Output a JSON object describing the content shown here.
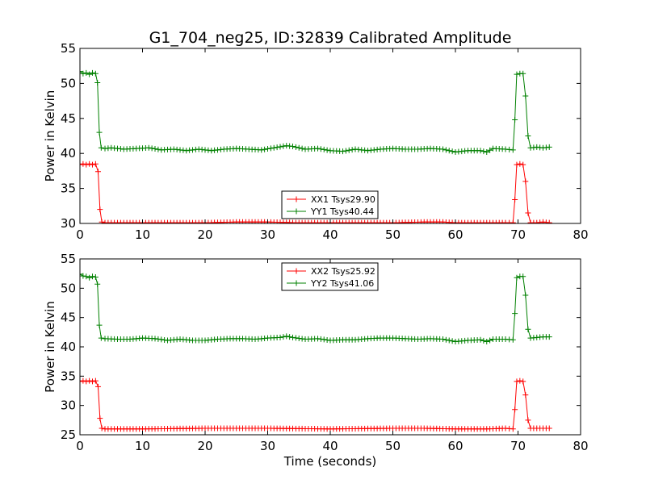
{
  "chart_data": [
    {
      "type": "line",
      "title": "G1_704_neg25, ID:32839 Calibrated Amplitude",
      "xlabel": "",
      "ylabel": "Power in Kelvin",
      "xlim": [
        0,
        80
      ],
      "ylim": [
        30,
        55
      ],
      "xticks": [
        0,
        10,
        20,
        30,
        40,
        50,
        60,
        70,
        80
      ],
      "yticks": [
        30,
        35,
        40,
        45,
        50,
        55
      ],
      "legend_position": "lower-center",
      "series": [
        {
          "name": "XX1 Tsys29.90",
          "color": "#ff0000",
          "points": [
            [
              0,
              38.4
            ],
            [
              0.5,
              38.5
            ],
            [
              1,
              38.4
            ],
            [
              1.5,
              38.5
            ],
            [
              2,
              38.4
            ],
            [
              2.5,
              38.5
            ],
            [
              2.9,
              37.4
            ],
            [
              3.2,
              32.0
            ],
            [
              3.5,
              30.2
            ],
            [
              4,
              30.1
            ],
            [
              10,
              30.1
            ],
            [
              20,
              30.1
            ],
            [
              25,
              30.2
            ],
            [
              30,
              30.2
            ],
            [
              35,
              30.1
            ],
            [
              40,
              30.1
            ],
            [
              45,
              30.1
            ],
            [
              50,
              30.1
            ],
            [
              55,
              30.2
            ],
            [
              58,
              30.2
            ],
            [
              60,
              30.1
            ],
            [
              65,
              30.1
            ],
            [
              68,
              30.1
            ],
            [
              69.2,
              30.1
            ],
            [
              69.5,
              33.4
            ],
            [
              69.8,
              38.4
            ],
            [
              70.3,
              38.5
            ],
            [
              70.8,
              38.4
            ],
            [
              71.2,
              36.0
            ],
            [
              71.6,
              31.5
            ],
            [
              72,
              30.1
            ],
            [
              73,
              30.1
            ],
            [
              74,
              30.2
            ],
            [
              75,
              30.1
            ]
          ]
        },
        {
          "name": "YY1 Tsys40.44",
          "color": "#008000",
          "points": [
            [
              0,
              51.7
            ],
            [
              0.5,
              51.4
            ],
            [
              1,
              51.5
            ],
            [
              1.5,
              51.3
            ],
            [
              2,
              51.5
            ],
            [
              2.5,
              51.4
            ],
            [
              2.8,
              50.1
            ],
            [
              3.1,
              43.0
            ],
            [
              3.4,
              40.8
            ],
            [
              4,
              40.7
            ],
            [
              5,
              40.8
            ],
            [
              7,
              40.6
            ],
            [
              9,
              40.7
            ],
            [
              11,
              40.8
            ],
            [
              13,
              40.5
            ],
            [
              15,
              40.6
            ],
            [
              17,
              40.4
            ],
            [
              19,
              40.6
            ],
            [
              21,
              40.4
            ],
            [
              23,
              40.6
            ],
            [
              25,
              40.7
            ],
            [
              27,
              40.6
            ],
            [
              29,
              40.5
            ],
            [
              31,
              40.8
            ],
            [
              33,
              41.1
            ],
            [
              34,
              41.0
            ],
            [
              36,
              40.6
            ],
            [
              38,
              40.7
            ],
            [
              40,
              40.4
            ],
            [
              42,
              40.3
            ],
            [
              44,
              40.6
            ],
            [
              46,
              40.4
            ],
            [
              48,
              40.6
            ],
            [
              50,
              40.7
            ],
            [
              52,
              40.6
            ],
            [
              54,
              40.6
            ],
            [
              56,
              40.7
            ],
            [
              58,
              40.6
            ],
            [
              60,
              40.2
            ],
            [
              62,
              40.4
            ],
            [
              64,
              40.4
            ],
            [
              65,
              40.2
            ],
            [
              66,
              40.7
            ],
            [
              68,
              40.6
            ],
            [
              69.2,
              40.5
            ],
            [
              69.5,
              44.8
            ],
            [
              69.8,
              51.3
            ],
            [
              70.3,
              51.4
            ],
            [
              70.8,
              51.4
            ],
            [
              71.2,
              48.2
            ],
            [
              71.6,
              42.5
            ],
            [
              72,
              40.8
            ],
            [
              73,
              40.9
            ],
            [
              74,
              40.8
            ],
            [
              75,
              40.9
            ]
          ]
        }
      ]
    },
    {
      "type": "line",
      "title": "",
      "xlabel": "Time (seconds)",
      "ylabel": "Power in Kelvin",
      "xlim": [
        0,
        80
      ],
      "ylim": [
        25,
        55
      ],
      "xticks": [
        0,
        10,
        20,
        30,
        40,
        50,
        60,
        70,
        80
      ],
      "yticks": [
        25,
        30,
        35,
        40,
        45,
        50,
        55
      ],
      "legend_position": "upper-center",
      "series": [
        {
          "name": "XX2 Tsys25.92",
          "color": "#ff0000",
          "points": [
            [
              0,
              34.1
            ],
            [
              0.5,
              34.2
            ],
            [
              1,
              34.1
            ],
            [
              1.5,
              34.2
            ],
            [
              2,
              34.1
            ],
            [
              2.5,
              34.2
            ],
            [
              2.9,
              33.2
            ],
            [
              3.2,
              27.8
            ],
            [
              3.5,
              26.1
            ],
            [
              4,
              26.0
            ],
            [
              10,
              26.0
            ],
            [
              20,
              26.1
            ],
            [
              30,
              26.1
            ],
            [
              40,
              26.0
            ],
            [
              50,
              26.1
            ],
            [
              55,
              26.1
            ],
            [
              60,
              26.0
            ],
            [
              65,
              26.0
            ],
            [
              68,
              26.1
            ],
            [
              69.2,
              26.0
            ],
            [
              69.5,
              29.3
            ],
            [
              69.8,
              34.1
            ],
            [
              70.3,
              34.2
            ],
            [
              70.8,
              34.1
            ],
            [
              71.2,
              31.8
            ],
            [
              71.6,
              27.5
            ],
            [
              72,
              26.1
            ],
            [
              73,
              26.1
            ],
            [
              74,
              26.1
            ],
            [
              75,
              26.1
            ]
          ]
        },
        {
          "name": "YY2 Tsys41.06",
          "color": "#008000",
          "points": [
            [
              0,
              52.4
            ],
            [
              0.5,
              52.1
            ],
            [
              1,
              52.0
            ],
            [
              1.5,
              51.8
            ],
            [
              2,
              52.0
            ],
            [
              2.5,
              51.9
            ],
            [
              2.8,
              50.7
            ],
            [
              3.1,
              43.7
            ],
            [
              3.4,
              41.5
            ],
            [
              4,
              41.4
            ],
            [
              6,
              41.3
            ],
            [
              8,
              41.3
            ],
            [
              10,
              41.5
            ],
            [
              12,
              41.4
            ],
            [
              14,
              41.1
            ],
            [
              16,
              41.3
            ],
            [
              18,
              41.1
            ],
            [
              20,
              41.1
            ],
            [
              22,
              41.3
            ],
            [
              24,
              41.4
            ],
            [
              26,
              41.4
            ],
            [
              28,
              41.3
            ],
            [
              30,
              41.5
            ],
            [
              32,
              41.6
            ],
            [
              33,
              41.8
            ],
            [
              34,
              41.6
            ],
            [
              36,
              41.3
            ],
            [
              38,
              41.4
            ],
            [
              40,
              41.1
            ],
            [
              42,
              41.2
            ],
            [
              44,
              41.2
            ],
            [
              46,
              41.4
            ],
            [
              48,
              41.5
            ],
            [
              50,
              41.5
            ],
            [
              52,
              41.4
            ],
            [
              54,
              41.3
            ],
            [
              56,
              41.4
            ],
            [
              58,
              41.3
            ],
            [
              60,
              40.9
            ],
            [
              62,
              41.1
            ],
            [
              64,
              41.2
            ],
            [
              65,
              40.9
            ],
            [
              66,
              41.3
            ],
            [
              68,
              41.3
            ],
            [
              69.2,
              41.2
            ],
            [
              69.5,
              45.7
            ],
            [
              69.8,
              51.8
            ],
            [
              70.3,
              52.0
            ],
            [
              70.8,
              52.0
            ],
            [
              71.2,
              48.8
            ],
            [
              71.6,
              43.0
            ],
            [
              72,
              41.5
            ],
            [
              73,
              41.6
            ],
            [
              74,
              41.7
            ],
            [
              75,
              41.7
            ]
          ]
        }
      ]
    }
  ]
}
